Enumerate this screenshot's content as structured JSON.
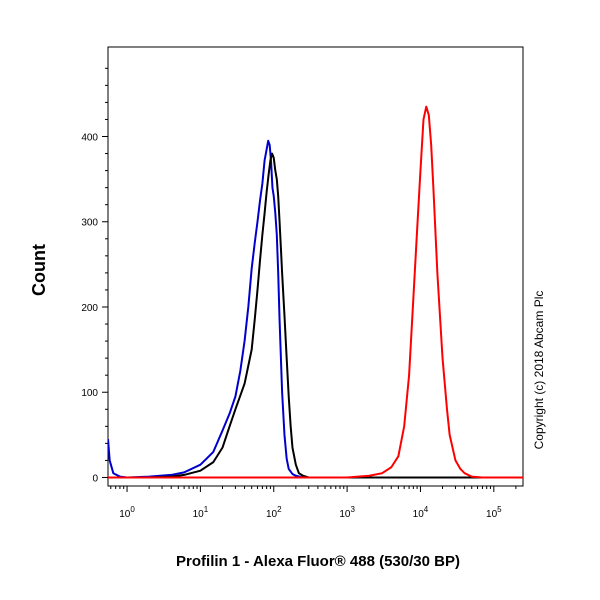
{
  "chart_data": {
    "type": "line",
    "xlabel": "Profilin 1 - Alexa Fluor® 488 (530/30 BP)",
    "ylabel": "Count",
    "xscale": "log",
    "xlim": [
      0.55,
      250000
    ],
    "ylim": [
      -10,
      505
    ],
    "x_ticks": [
      1,
      10,
      100,
      1000,
      10000,
      100000
    ],
    "x_tick_labels": [
      {
        "base": "10",
        "exp": "0"
      },
      {
        "base": "10",
        "exp": "1"
      },
      {
        "base": "10",
        "exp": "2"
      },
      {
        "base": "10",
        "exp": "3"
      },
      {
        "base": "10",
        "exp": "4"
      },
      {
        "base": "10",
        "exp": "5"
      }
    ],
    "y_ticks": [
      0,
      100,
      200,
      300,
      400
    ],
    "y_tick_labels": [
      "0",
      "100",
      "200",
      "300",
      "400"
    ],
    "grid": false,
    "annotation": "Copyright (c) 2018 Abcam Plc",
    "series": [
      {
        "color": "#0000cc",
        "x": [
          0.55,
          0.58,
          0.65,
          0.8,
          1,
          2,
          4,
          6,
          10,
          15,
          20,
          25,
          30,
          35,
          40,
          45,
          50,
          55,
          60,
          65,
          70,
          75,
          80,
          84,
          88,
          92,
          96,
          100,
          105,
          110,
          115,
          120,
          130,
          140,
          150,
          160,
          180,
          200,
          250,
          300,
          1000,
          10000,
          100000,
          250000
        ],
        "y": [
          45,
          20,
          5,
          1,
          0,
          1,
          3,
          6,
          15,
          30,
          55,
          75,
          95,
          125,
          160,
          200,
          245,
          275,
          300,
          325,
          345,
          372,
          385,
          395,
          390,
          370,
          340,
          330,
          310,
          285,
          240,
          185,
          100,
          50,
          22,
          10,
          4,
          2,
          0,
          0,
          0,
          0,
          0,
          0
        ]
      },
      {
        "color": "#000000",
        "x": [
          0.55,
          0.8,
          1,
          2,
          4,
          6,
          10,
          15,
          20,
          25,
          30,
          40,
          50,
          55,
          60,
          65,
          70,
          75,
          80,
          85,
          90,
          95,
          100,
          105,
          110,
          115,
          120,
          125,
          130,
          140,
          150,
          160,
          170,
          180,
          200,
          220,
          250,
          300,
          1000,
          10000,
          100000,
          250000
        ],
        "y": [
          0,
          0,
          0,
          0,
          1,
          3,
          8,
          18,
          35,
          60,
          80,
          110,
          150,
          185,
          220,
          255,
          285,
          310,
          335,
          355,
          372,
          380,
          375,
          360,
          350,
          330,
          300,
          270,
          240,
          190,
          140,
          95,
          60,
          35,
          15,
          5,
          2,
          0,
          0,
          0,
          0,
          0
        ]
      },
      {
        "color": "#ff0000",
        "x": [
          0.55,
          100,
          1000,
          2000,
          3000,
          4000,
          5000,
          6000,
          7000,
          8000,
          9000,
          10000,
          11000,
          12000,
          13000,
          14000,
          15000,
          17000,
          20000,
          23000,
          25000,
          30000,
          35000,
          40000,
          50000,
          70000,
          100000,
          250000
        ],
        "y": [
          0,
          0,
          0,
          2,
          5,
          12,
          25,
          60,
          120,
          210,
          290,
          360,
          420,
          435,
          425,
          390,
          340,
          240,
          140,
          80,
          50,
          20,
          10,
          5,
          1,
          0,
          0,
          0
        ]
      }
    ]
  }
}
